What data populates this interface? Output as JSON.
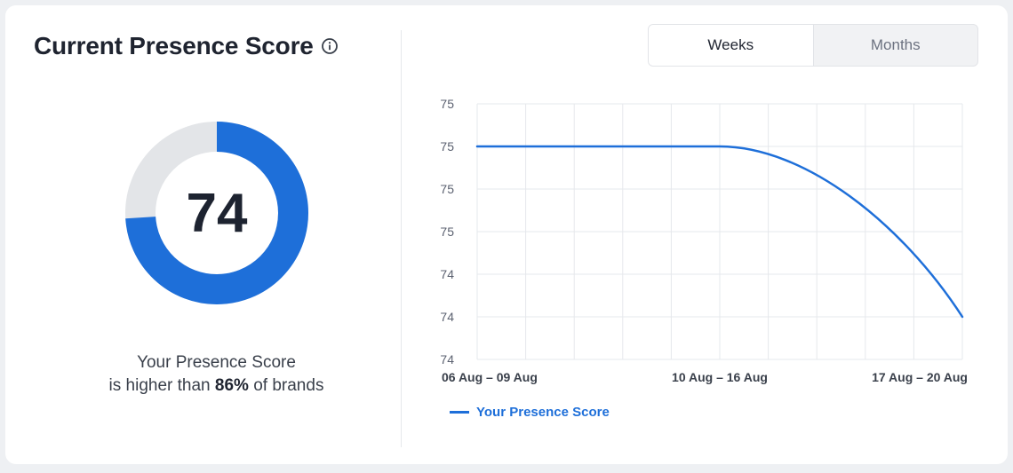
{
  "card": {
    "title": "Current Presence Score",
    "info_icon": "info-icon",
    "score": "74",
    "score_value": 74,
    "caption_line1": "Your Presence Score",
    "caption_prefix": "is higher than",
    "caption_percent": "86%",
    "caption_suffix": "of brands"
  },
  "colors": {
    "accent": "#1e6fd9",
    "track": "#e3e5e8",
    "grid": "#e6e8ec"
  },
  "toggle": {
    "weeks_label": "Weeks",
    "months_label": "Months",
    "active": "weeks"
  },
  "chart_data": {
    "type": "line",
    "title": "",
    "xlabel": "",
    "ylabel": "",
    "y_tick_labels": [
      "75",
      "75",
      "75",
      "75",
      "74",
      "74",
      "74"
    ],
    "ylim": [
      73.9,
      75.1
    ],
    "x_tick_labels": [
      "06 Aug – 09 Aug",
      "10 Aug – 16 Aug",
      "17 Aug – 20 Aug"
    ],
    "grid": true,
    "legend_position": "bottom-left",
    "series": [
      {
        "name": "Your Presence Score",
        "x": [
          "06 Aug – 09 Aug",
          "10 Aug – 16 Aug",
          "17 Aug – 20 Aug"
        ],
        "values": [
          74.9,
          74.9,
          74.1
        ]
      }
    ]
  }
}
